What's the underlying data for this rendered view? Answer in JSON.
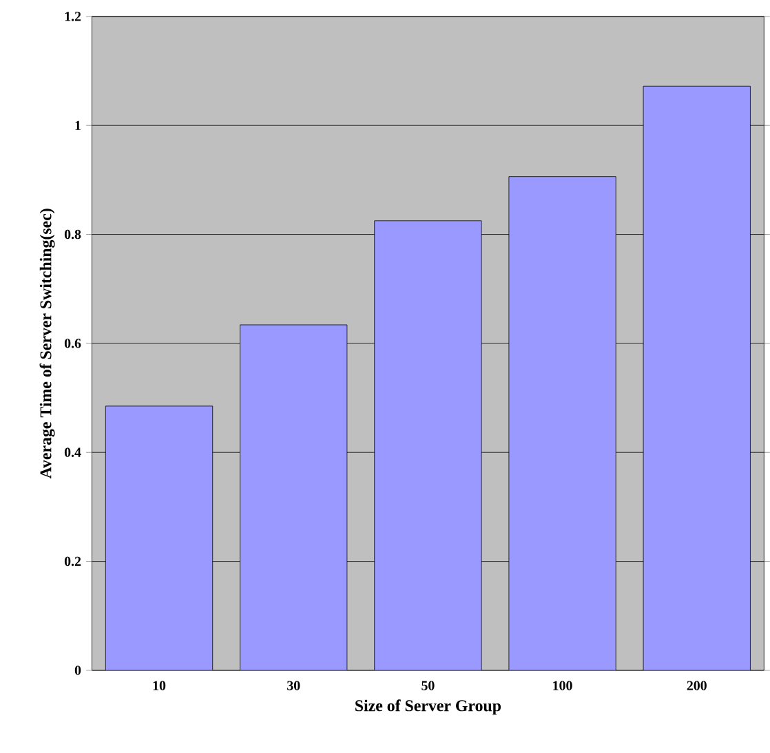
{
  "chart_data": {
    "type": "bar",
    "xlabel": "Size of Server Group",
    "ylabel": "Average Time of Server Switching(sec)",
    "categories": [
      "10",
      "30",
      "50",
      "100",
      "200"
    ],
    "values": [
      0.485,
      0.634,
      0.825,
      0.906,
      1.072
    ],
    "color": "#9999ff",
    "ylim": [
      0,
      1.2
    ],
    "yticks": [
      0,
      0.2,
      0.4,
      0.6,
      0.8,
      1,
      1.2
    ],
    "grid": "y"
  }
}
